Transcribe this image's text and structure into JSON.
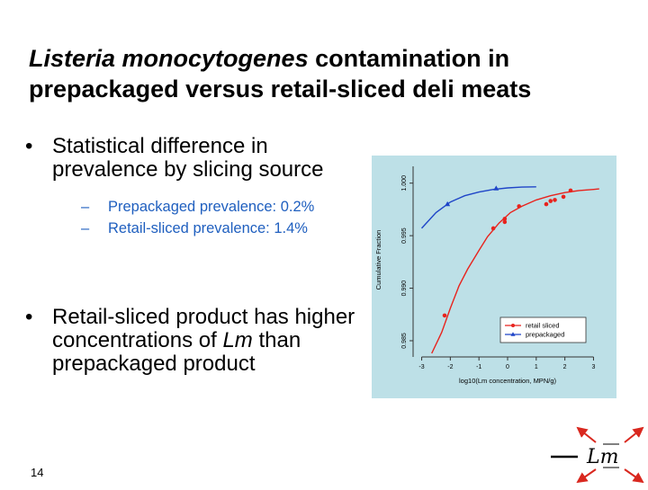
{
  "slide": {
    "title_italic": "Listeria monocytogenes",
    "title_rest": " contamination in prepackaged versus retail-sliced deli meats",
    "bullet1": "Statistical difference in prevalence by slicing source",
    "sub1": "Prepackaged prevalence: 0.2%",
    "sub2": "Retail-sliced prevalence: 1.4%",
    "bullet2_a": "Retail-sliced product has higher concentrations of ",
    "bullet2_italic": "Lm",
    "bullet2_b": " than prepackaged product",
    "bullet_glyph": "•",
    "dash_glyph": "–",
    "page_number": "14",
    "logo_text": "Lm"
  },
  "colors": {
    "sub_text": "#1f5fbf",
    "chart_background": "#bde0e7",
    "retail": "#e8231d",
    "prepackaged": "#1f45c8",
    "logo_arrows": "#d9281f"
  },
  "chart_data": {
    "type": "line",
    "xlabel": "log10(Lm concentration, MPN/g)",
    "ylabel": "Cumulative Fraction",
    "xlim": [
      -3.3,
      3.3
    ],
    "ylim": [
      0.9838,
      1.0016
    ],
    "x_ticks": [
      -3,
      -2,
      -1,
      0,
      1,
      2,
      3
    ],
    "y_ticks": [
      0.985,
      0.99,
      0.995,
      1.0
    ],
    "y_tick_labels": [
      "0.985",
      "0.990",
      "0.995",
      "1.000"
    ],
    "legend_position": "bottom-right",
    "series": [
      {
        "name": "retail sliced",
        "marker": "circle",
        "points": [
          [
            -2.2,
            0.9874
          ],
          [
            -0.5,
            0.9957
          ],
          [
            -0.1,
            0.9963
          ],
          [
            -0.1,
            0.9966
          ],
          [
            0.4,
            0.9978
          ],
          [
            1.35,
            0.998
          ],
          [
            1.5,
            0.9983
          ],
          [
            1.65,
            0.9984
          ],
          [
            1.95,
            0.9987
          ],
          [
            2.2,
            0.9993
          ]
        ],
        "curve": [
          [
            -2.65,
            0.9838
          ],
          [
            -2.3,
            0.9858
          ],
          [
            -2.0,
            0.9881
          ],
          [
            -1.7,
            0.9902
          ],
          [
            -1.4,
            0.9918
          ],
          [
            -1.0,
            0.9936
          ],
          [
            -0.7,
            0.9949
          ],
          [
            -0.3,
            0.9962
          ],
          [
            0.1,
            0.9972
          ],
          [
            0.5,
            0.9978
          ],
          [
            1.0,
            0.9984
          ],
          [
            1.5,
            0.9988
          ],
          [
            2.0,
            0.9991
          ],
          [
            2.5,
            0.9993
          ],
          [
            3.0,
            0.9994
          ],
          [
            3.2,
            0.99945
          ]
        ]
      },
      {
        "name": "prepackaged",
        "marker": "triangle",
        "points": [
          [
            -2.1,
            0.998
          ],
          [
            -0.4,
            0.9995
          ]
        ],
        "curve": [
          [
            -3.0,
            0.9957
          ],
          [
            -2.5,
            0.9972
          ],
          [
            -2.0,
            0.9982
          ],
          [
            -1.5,
            0.9988
          ],
          [
            -1.0,
            0.99915
          ],
          [
            -0.5,
            0.9994
          ],
          [
            0.0,
            0.99955
          ],
          [
            0.5,
            0.99962
          ],
          [
            1.0,
            0.99965
          ]
        ]
      }
    ]
  }
}
